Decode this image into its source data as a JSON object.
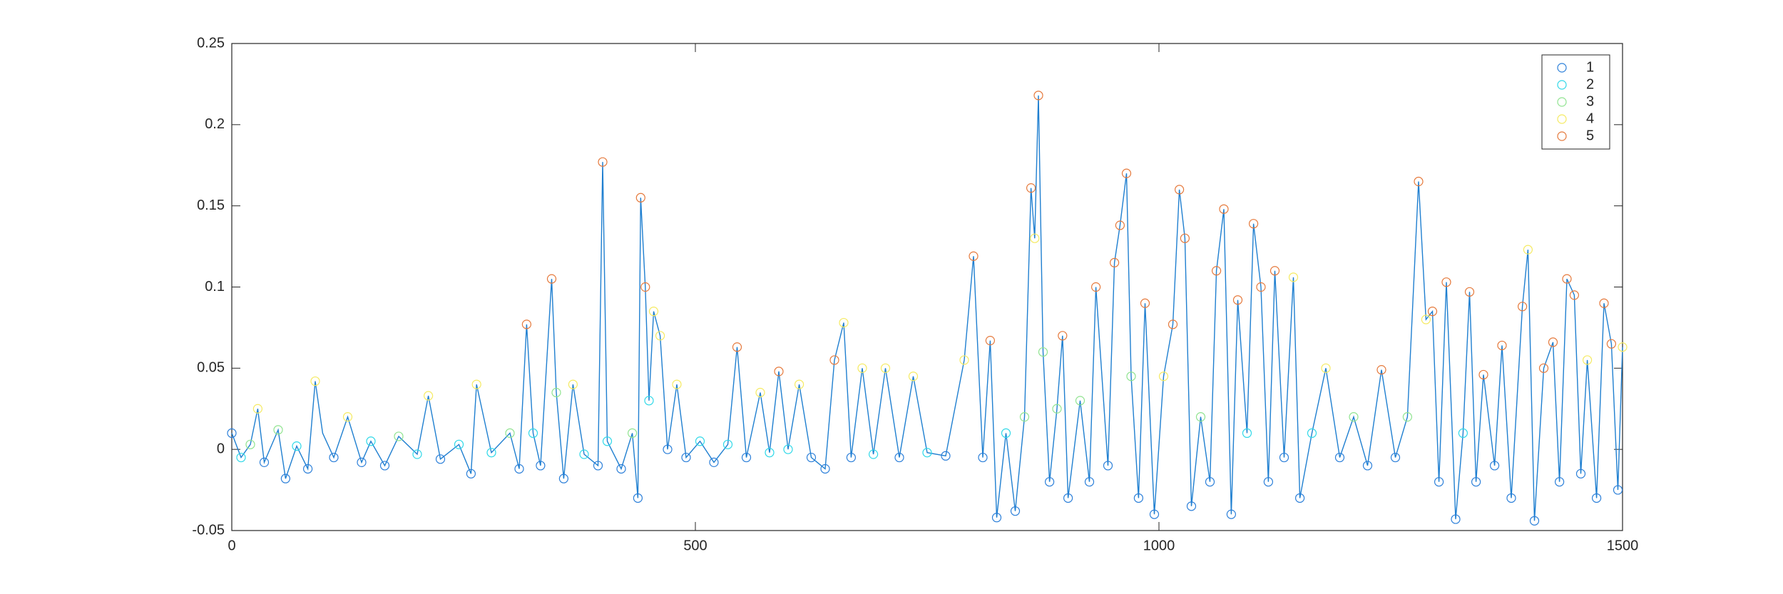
{
  "chart_data": {
    "type": "line",
    "x": [
      0,
      10,
      20,
      28,
      35,
      50,
      58,
      70,
      82,
      90,
      98,
      110,
      125,
      140,
      150,
      165,
      180,
      200,
      212,
      225,
      245,
      258,
      264,
      280,
      300,
      310,
      318,
      325,
      333,
      345,
      350,
      358,
      368,
      380,
      395,
      400,
      405,
      420,
      432,
      438,
      441,
      446,
      450,
      455,
      462,
      470,
      480,
      490,
      505,
      520,
      535,
      545,
      555,
      570,
      580,
      590,
      600,
      612,
      625,
      640,
      650,
      660,
      668,
      680,
      692,
      705,
      720,
      735,
      750,
      770,
      790,
      800,
      810,
      818,
      825,
      835,
      845,
      855,
      862,
      866,
      870,
      875,
      882,
      890,
      896,
      902,
      915,
      925,
      932,
      945,
      952,
      958,
      965,
      970,
      978,
      985,
      995,
      1005,
      1015,
      1022,
      1028,
      1035,
      1045,
      1055,
      1062,
      1070,
      1078,
      1085,
      1095,
      1102,
      1110,
      1118,
      1125,
      1135,
      1145,
      1152,
      1165,
      1180,
      1195,
      1210,
      1225,
      1240,
      1255,
      1268,
      1280,
      1288,
      1295,
      1302,
      1310,
      1320,
      1328,
      1335,
      1342,
      1350,
      1362,
      1370,
      1380,
      1392,
      1398,
      1405,
      1415,
      1425,
      1432,
      1440,
      1448,
      1455,
      1462,
      1472,
      1480,
      1488,
      1495,
      1500
    ],
    "values": [
      0.01,
      -0.005,
      0.003,
      0.025,
      -0.008,
      0.012,
      -0.018,
      0.002,
      -0.012,
      0.042,
      0.01,
      -0.005,
      0.02,
      -0.008,
      0.005,
      -0.01,
      0.008,
      -0.003,
      0.033,
      -0.006,
      0.003,
      -0.015,
      0.04,
      -0.002,
      0.01,
      -0.012,
      0.077,
      0.01,
      -0.01,
      0.105,
      0.035,
      -0.018,
      0.04,
      -0.003,
      -0.01,
      0.177,
      0.005,
      -0.012,
      0.01,
      -0.03,
      0.155,
      0.1,
      0.03,
      0.085,
      0.07,
      0.0,
      0.04,
      -0.005,
      0.005,
      -0.008,
      0.003,
      0.063,
      -0.005,
      0.035,
      -0.002,
      0.048,
      0.0,
      0.04,
      -0.005,
      -0.012,
      0.055,
      0.078,
      -0.005,
      0.05,
      -0.003,
      0.05,
      -0.005,
      0.045,
      -0.002,
      -0.004,
      0.055,
      0.119,
      -0.005,
      0.067,
      -0.042,
      0.01,
      -0.038,
      0.02,
      0.161,
      0.13,
      0.218,
      0.06,
      -0.02,
      0.025,
      0.07,
      -0.03,
      0.03,
      -0.02,
      0.1,
      -0.01,
      0.115,
      0.138,
      0.17,
      0.045,
      -0.03,
      0.09,
      -0.04,
      0.045,
      0.077,
      0.16,
      0.13,
      -0.035,
      0.02,
      -0.02,
      0.11,
      0.148,
      -0.04,
      0.092,
      0.01,
      0.139,
      0.1,
      -0.02,
      0.11,
      -0.005,
      0.106,
      -0.03,
      0.01,
      0.05,
      -0.005,
      0.02,
      -0.01,
      0.049,
      -0.005,
      0.02,
      0.165,
      0.08,
      0.085,
      -0.02,
      0.103,
      -0.043,
      0.01,
      0.097,
      -0.02,
      0.046,
      -0.01,
      0.064,
      -0.03,
      0.088,
      0.123,
      -0.044,
      0.05,
      0.066,
      -0.02,
      0.105,
      0.095,
      -0.015,
      0.055,
      -0.03,
      0.09,
      0.065,
      -0.025,
      0.063
    ],
    "line_color": "#1f7fd0",
    "series": [
      {
        "name": "1",
        "color": "#2b7fd9",
        "x": [
          0,
          35,
          58,
          82,
          110,
          140,
          165,
          225,
          258,
          310,
          333,
          358,
          395,
          420,
          438,
          470,
          490,
          520,
          555,
          625,
          640,
          668,
          720,
          770,
          810,
          825,
          845,
          882,
          902,
          925,
          945,
          978,
          995,
          1035,
          1055,
          1078,
          1118,
          1135,
          1152,
          1195,
          1225,
          1255,
          1302,
          1320,
          1342,
          1362,
          1380,
          1405,
          1432,
          1455,
          1472,
          1495
        ],
        "values": [
          0.01,
          -0.008,
          -0.018,
          -0.012,
          -0.005,
          -0.008,
          -0.01,
          -0.006,
          -0.015,
          -0.012,
          -0.01,
          -0.018,
          -0.01,
          -0.012,
          -0.03,
          0.0,
          -0.005,
          -0.008,
          -0.005,
          -0.005,
          -0.012,
          -0.005,
          -0.005,
          -0.004,
          -0.005,
          -0.042,
          -0.038,
          -0.02,
          -0.03,
          -0.02,
          -0.01,
          -0.03,
          -0.04,
          -0.035,
          -0.02,
          -0.04,
          -0.02,
          -0.005,
          -0.03,
          -0.005,
          -0.01,
          -0.005,
          -0.02,
          -0.043,
          -0.02,
          -0.01,
          -0.03,
          -0.044,
          -0.02,
          -0.015,
          -0.03,
          -0.025
        ]
      },
      {
        "name": "2",
        "color": "#2fd8e8",
        "x": [
          10,
          70,
          150,
          200,
          245,
          280,
          325,
          380,
          405,
          450,
          505,
          535,
          580,
          600,
          692,
          750,
          835,
          1095,
          1165,
          1328
        ],
        "values": [
          -0.005,
          0.002,
          0.005,
          -0.003,
          0.003,
          -0.002,
          0.01,
          -0.003,
          0.005,
          0.03,
          0.005,
          0.003,
          -0.002,
          0.0,
          -0.003,
          -0.002,
          0.01,
          0.01,
          0.01,
          0.01
        ]
      },
      {
        "name": "3",
        "color": "#8fe38f",
        "x": [
          20,
          50,
          180,
          300,
          350,
          432,
          855,
          875,
          890,
          915,
          970,
          1045,
          1210,
          1268
        ],
        "values": [
          0.003,
          0.012,
          0.008,
          0.01,
          0.035,
          0.01,
          0.02,
          0.06,
          0.025,
          0.03,
          0.045,
          0.02,
          0.02,
          0.02
        ]
      },
      {
        "name": "4",
        "color": "#f5ea60",
        "x": [
          28,
          90,
          125,
          212,
          264,
          368,
          455,
          462,
          480,
          570,
          612,
          660,
          680,
          705,
          735,
          790,
          866,
          1005,
          1145,
          1180,
          1288,
          1398,
          1462,
          1500
        ],
        "values": [
          0.025,
          0.042,
          0.02,
          0.033,
          0.04,
          0.04,
          0.085,
          0.07,
          0.04,
          0.035,
          0.04,
          0.078,
          0.05,
          0.05,
          0.045,
          0.055,
          0.13,
          0.045,
          0.106,
          0.05,
          0.08,
          0.123,
          0.055,
          0.063
        ]
      },
      {
        "name": "5",
        "color": "#e5783a",
        "x": [
          318,
          345,
          400,
          441,
          446,
          545,
          590,
          650,
          800,
          818,
          862,
          870,
          896,
          932,
          952,
          958,
          965,
          985,
          1015,
          1022,
          1028,
          1062,
          1070,
          1085,
          1102,
          1110,
          1125,
          1240,
          1280,
          1295,
          1310,
          1335,
          1350,
          1370,
          1392,
          1415,
          1425,
          1440,
          1448,
          1480,
          1488
        ],
        "values": [
          0.077,
          0.105,
          0.177,
          0.155,
          0.1,
          0.063,
          0.048,
          0.055,
          0.119,
          0.067,
          0.161,
          0.218,
          0.07,
          0.1,
          0.115,
          0.138,
          0.17,
          0.09,
          0.077,
          0.16,
          0.13,
          0.11,
          0.148,
          0.092,
          0.139,
          0.1,
          0.11,
          0.049,
          0.165,
          0.085,
          0.103,
          0.097,
          0.046,
          0.064,
          0.088,
          0.05,
          0.066,
          0.105,
          0.095,
          0.09,
          0.065
        ]
      }
    ],
    "xlim": [
      0,
      1500
    ],
    "xticks": [
      0,
      500,
      1000,
      1500
    ],
    "ylim": [
      -0.05,
      0.25
    ],
    "yticks": [
      -0.05,
      0,
      0.05,
      0.1,
      0.15,
      0.2,
      0.25
    ],
    "grid": false,
    "legend": "northeast"
  }
}
